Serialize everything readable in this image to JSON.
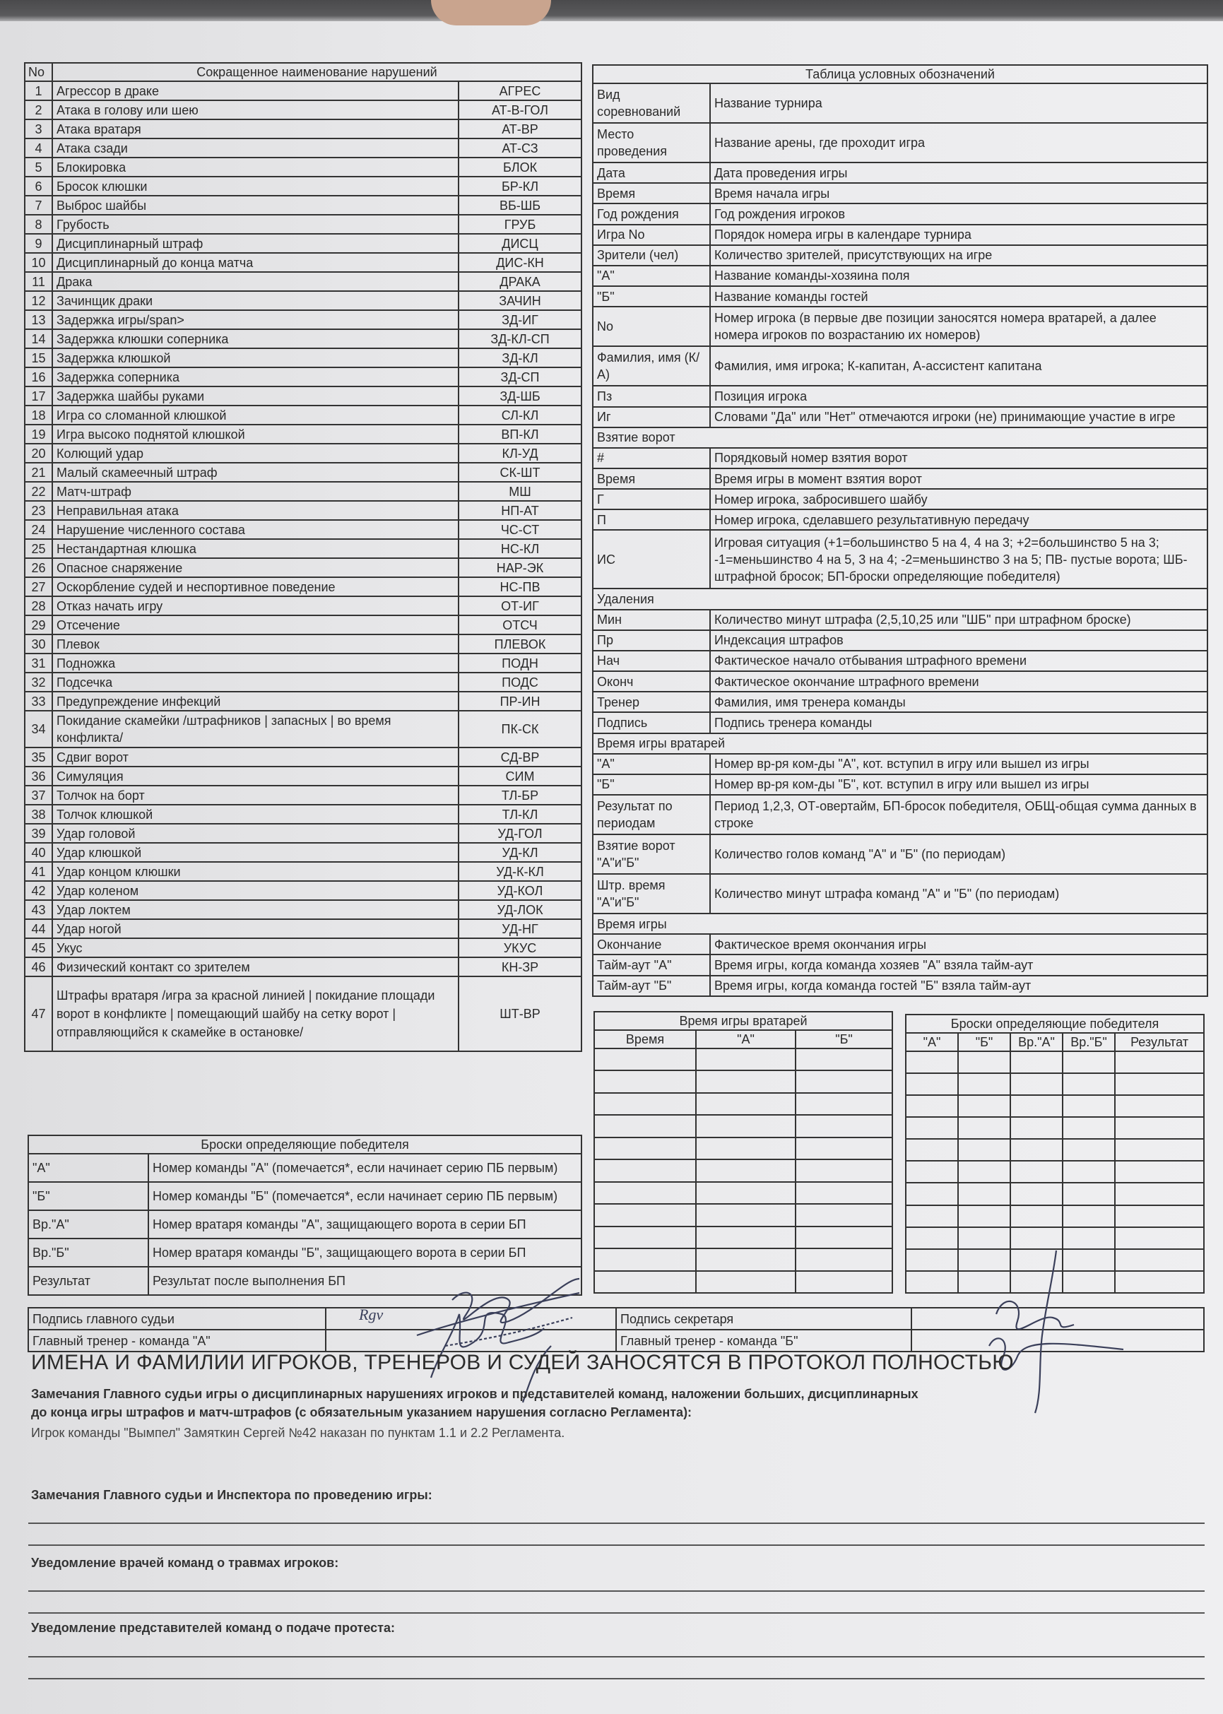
{
  "violations": {
    "header": {
      "no": "No",
      "name": "Сокращенное наименование нарушений"
    },
    "rows": [
      [
        "1",
        "Агрессор в драке",
        "АГРЕС"
      ],
      [
        "2",
        "Атака в голову или шею",
        "АТ-В-ГОЛ"
      ],
      [
        "3",
        "Атака вратаря",
        "АТ-ВР"
      ],
      [
        "4",
        "Атака сзади",
        "АТ-СЗ"
      ],
      [
        "5",
        "Блокировка",
        "БЛОК"
      ],
      [
        "6",
        "Бросок клюшки",
        "БР-КЛ"
      ],
      [
        "7",
        "Выброс шайбы",
        "ВБ-ШБ"
      ],
      [
        "8",
        "Грубость",
        "ГРУБ"
      ],
      [
        "9",
        "Дисциплинарный штраф",
        "ДИСЦ"
      ],
      [
        "10",
        "Дисциплинарный до конца матча",
        "ДИС-КН"
      ],
      [
        "11",
        "Драка",
        "ДРАКА"
      ],
      [
        "12",
        "Зачинщик драки",
        "ЗАЧИН"
      ],
      [
        "13",
        "Задержка игры/span>",
        "ЗД-ИГ"
      ],
      [
        "14",
        "Задержка клюшки соперника",
        "ЗД-КЛ-СП"
      ],
      [
        "15",
        "Задержка клюшкой",
        "ЗД-КЛ"
      ],
      [
        "16",
        "Задержка соперника",
        "ЗД-СП"
      ],
      [
        "17",
        "Задержка шайбы руками",
        "ЗД-ШБ"
      ],
      [
        "18",
        "Игра со сломанной клюшкой",
        "СЛ-КЛ"
      ],
      [
        "19",
        "Игра высоко поднятой клюшкой",
        "ВП-КЛ"
      ],
      [
        "20",
        "Колющий удар",
        "КЛ-УД"
      ],
      [
        "21",
        "Малый скамеечный штраф",
        "СК-ШТ"
      ],
      [
        "22",
        "Матч-штраф",
        "МШ"
      ],
      [
        "23",
        "Неправильная атака",
        "НП-АТ"
      ],
      [
        "24",
        "Нарушение численного состава",
        "ЧС-СТ"
      ],
      [
        "25",
        "Нестандартная клюшка",
        "НС-КЛ"
      ],
      [
        "26",
        "Опасное снаряжение",
        "НАР-ЭК"
      ],
      [
        "27",
        "Оскорбление судей и неспортивное поведение",
        "НС-ПВ"
      ],
      [
        "28",
        "Отказ начать игру",
        "ОТ-ИГ"
      ],
      [
        "29",
        "Отсечение",
        "ОТСЧ"
      ],
      [
        "30",
        "Плевок",
        "ПЛЕВОК"
      ],
      [
        "31",
        "Подножка",
        "ПОДН"
      ],
      [
        "32",
        "Подсечка",
        "ПОДС"
      ],
      [
        "33",
        "Предупреждение инфекций",
        "ПР-ИН"
      ],
      [
        "34",
        "Покидание скамейки /штрафников | запасных | во время конфликта/",
        "ПК-СК"
      ],
      [
        "35",
        "Сдвиг ворот",
        "СД-ВР"
      ],
      [
        "36",
        "Симуляция",
        "СИМ"
      ],
      [
        "37",
        "Толчок на борт",
        "ТЛ-БР"
      ],
      [
        "38",
        "Толчок клюшкой",
        "ТЛ-КЛ"
      ],
      [
        "39",
        "Удар головой",
        "УД-ГОЛ"
      ],
      [
        "40",
        "Удар клюшкой",
        "УД-КЛ"
      ],
      [
        "41",
        "Удар концом клюшки",
        "УД-К-КЛ"
      ],
      [
        "42",
        "Удар коленом",
        "УД-КОЛ"
      ],
      [
        "43",
        "Удар локтем",
        "УД-ЛОК"
      ],
      [
        "44",
        "Удар ногой",
        "УД-НГ"
      ],
      [
        "45",
        "Укус",
        "УКУС"
      ],
      [
        "46",
        "Физический контакт со зрителем",
        "КН-ЗР"
      ],
      [
        "47",
        "Штрафы вратаря /игра за красной линией | покидание площади ворот в конфликте | помещающий шайбу на сетку ворот |отправляющийся к скамейке в остановке/",
        "ШТ-ВР"
      ]
    ]
  },
  "legend": {
    "title": "Таблица условных обозначений",
    "rows": [
      [
        "Вид соревнований",
        "Название турнира"
      ],
      [
        "Место проведения",
        "Название арены, где проходит игра"
      ],
      [
        "Дата",
        "Дата проведения игры"
      ],
      [
        "Время",
        "Время начала игры"
      ],
      [
        "Год рождения",
        "Год рождения игроков"
      ],
      [
        "Игра No",
        "Порядок номера игры в календаре турнира"
      ],
      [
        "Зрители (чел)",
        "Количество зрителей, присутствующих на игре"
      ],
      [
        "\"А\"",
        "Название команды-хозяина поля"
      ],
      [
        "\"Б\"",
        "Название команды гостей"
      ],
      [
        "No",
        "Номер игрока (в первые две позиции заносятся номера вратарей, а далее номера игроков по возрастанию их номеров)"
      ],
      [
        "Фамилия, имя (К/А)",
        "Фамилия, имя игрока; К-капитан, А-ассистент капитана"
      ],
      [
        "Пз",
        "Позиция игрока"
      ],
      [
        "Иг",
        "Словами \"Да\" или \"Нет\" отмечаются игроки (не) принимающие участие в игре"
      ],
      [
        "Взятие ворот",
        null
      ],
      [
        "#",
        "Порядковый номер взятия ворот"
      ],
      [
        "Время",
        "Время игры в момент взятия ворот"
      ],
      [
        "Г",
        "Номер игрока, забросившего шайбу"
      ],
      [
        "П",
        "Номер игрока, сделавшего результативную передачу"
      ],
      [
        "ИС",
        "Игровая ситуация (+1=большинство 5 на 4, 4 на 3; +2=большинство 5 на 3; -1=меньшинство 4 на 5, 3 на 4; -2=меньшинство 3 на 5; ПВ- пустые ворота; ШБ-штрафной бросок; БП-броски определяющие победителя)"
      ],
      [
        "Удаления",
        null
      ],
      [
        "Мин",
        "Количество минут штрафа (2,5,10,25 или \"ШБ\" при штрафном броске)"
      ],
      [
        "Пр",
        "Индексация штрафов"
      ],
      [
        "Нач",
        "Фактическое начало отбывания штрафного времени"
      ],
      [
        "Оконч",
        "Фактическое окончание штрафного времени"
      ],
      [
        "Тренер",
        "Фамилия, имя тренера команды"
      ],
      [
        "Подпись",
        "Подпись тренера команды"
      ],
      [
        "Время игры вратарей",
        null
      ],
      [
        "\"А\"",
        "Номер вр-ря ком-ды \"А\", кот. вступил в игру или вышел из игры"
      ],
      [
        "\"Б\"",
        "Номер вр-ря ком-ды \"Б\", кот. вступил в игру или вышел из игры"
      ],
      [
        "Результат по периодам",
        "Период 1,2,3, ОТ-овертайм, БП-бросок победителя, ОБЩ-общая сумма данных в строке"
      ],
      [
        "Взятие ворот \"А\"и\"Б\"",
        "Количество голов команд \"А\" и \"Б\" (по периодам)"
      ],
      [
        "Штр. время \"А\"и\"Б\"",
        "Количество минут штрафа команд \"А\" и \"Б\" (по периодам)"
      ],
      [
        "Время игры",
        null
      ],
      [
        "Окончание",
        "Фактическое время окончания игры"
      ],
      [
        "Тайм-аут \"А\"",
        "Время игры, когда команда хозяев \"А\" взяла тайм-аут"
      ],
      [
        "Тайм-аут \"Б\"",
        "Время игры, когда команда гостей \"Б\" взяла тайм-аут"
      ]
    ]
  },
  "goalie_time": {
    "title": "Время игры вратарей",
    "columns": [
      "Время",
      "\"А\"",
      "\"Б\""
    ]
  },
  "shootout_table": {
    "title": "Броски определяющие победителя",
    "columns": [
      "\"А\"",
      "\"Б\"",
      "Вр.\"А\"",
      "Вр.\"Б\"",
      "Результат"
    ]
  },
  "shootout_legend": {
    "title": "Броски определяющие победителя",
    "rows": [
      [
        "\"А\"",
        "Номер команды \"А\" (помечается*, если начинает серию ПБ первым)"
      ],
      [
        "\"Б\"",
        "Номер команды \"Б\" (помечается*, если начинает серию ПБ первым)"
      ],
      [
        "Вр.\"А\"",
        "Номер вратаря команды \"А\", защищающего ворота в серии БП"
      ],
      [
        "Вр.\"Б\"",
        "Номер вратаря команды \"Б\", защищающего ворота в серии БП"
      ],
      [
        "Результат",
        "Результат после выполнения БП"
      ]
    ]
  },
  "signatures": {
    "head_referee": "Подпись главного судьи",
    "coach_a": "Главный тренер - команда \"А\"",
    "secretary": "Подпись секретаря",
    "coach_b": "Главный тренер - команда \"Б\"",
    "handwritten": "Rgv"
  },
  "notice": "ИМЕНА И ФАМИЛИИ ИГРОКОВ, ТРЕНЕРОВ И СУДЕЙ ЗАНОСЯТСЯ В ПРОТОКОЛ ПОЛНОСТЬЮ",
  "remarks": {
    "discipline_label_line1": "Замечания Главного судьи игры о дисциплинарных нарушениях игроков и представителей команд, наложении больших, дисциплинарных",
    "discipline_label_line2": "до конца игры штрафов и матч-штрафов (с обязательным указанием нарушения согласно Регламента):",
    "discipline_text": "Игрок команды \"Вымпел\" Замяткин Сергей №42 наказан по пунктам 1.1 и 2.2 Регламента.",
    "inspector_label": "Замечания Главного судьи и Инспектора по проведению игры:",
    "injuries_label": "Уведомление врачей команд о травмах игроков:",
    "protest_label": "Уведомление представителей команд о подаче протеста:"
  }
}
